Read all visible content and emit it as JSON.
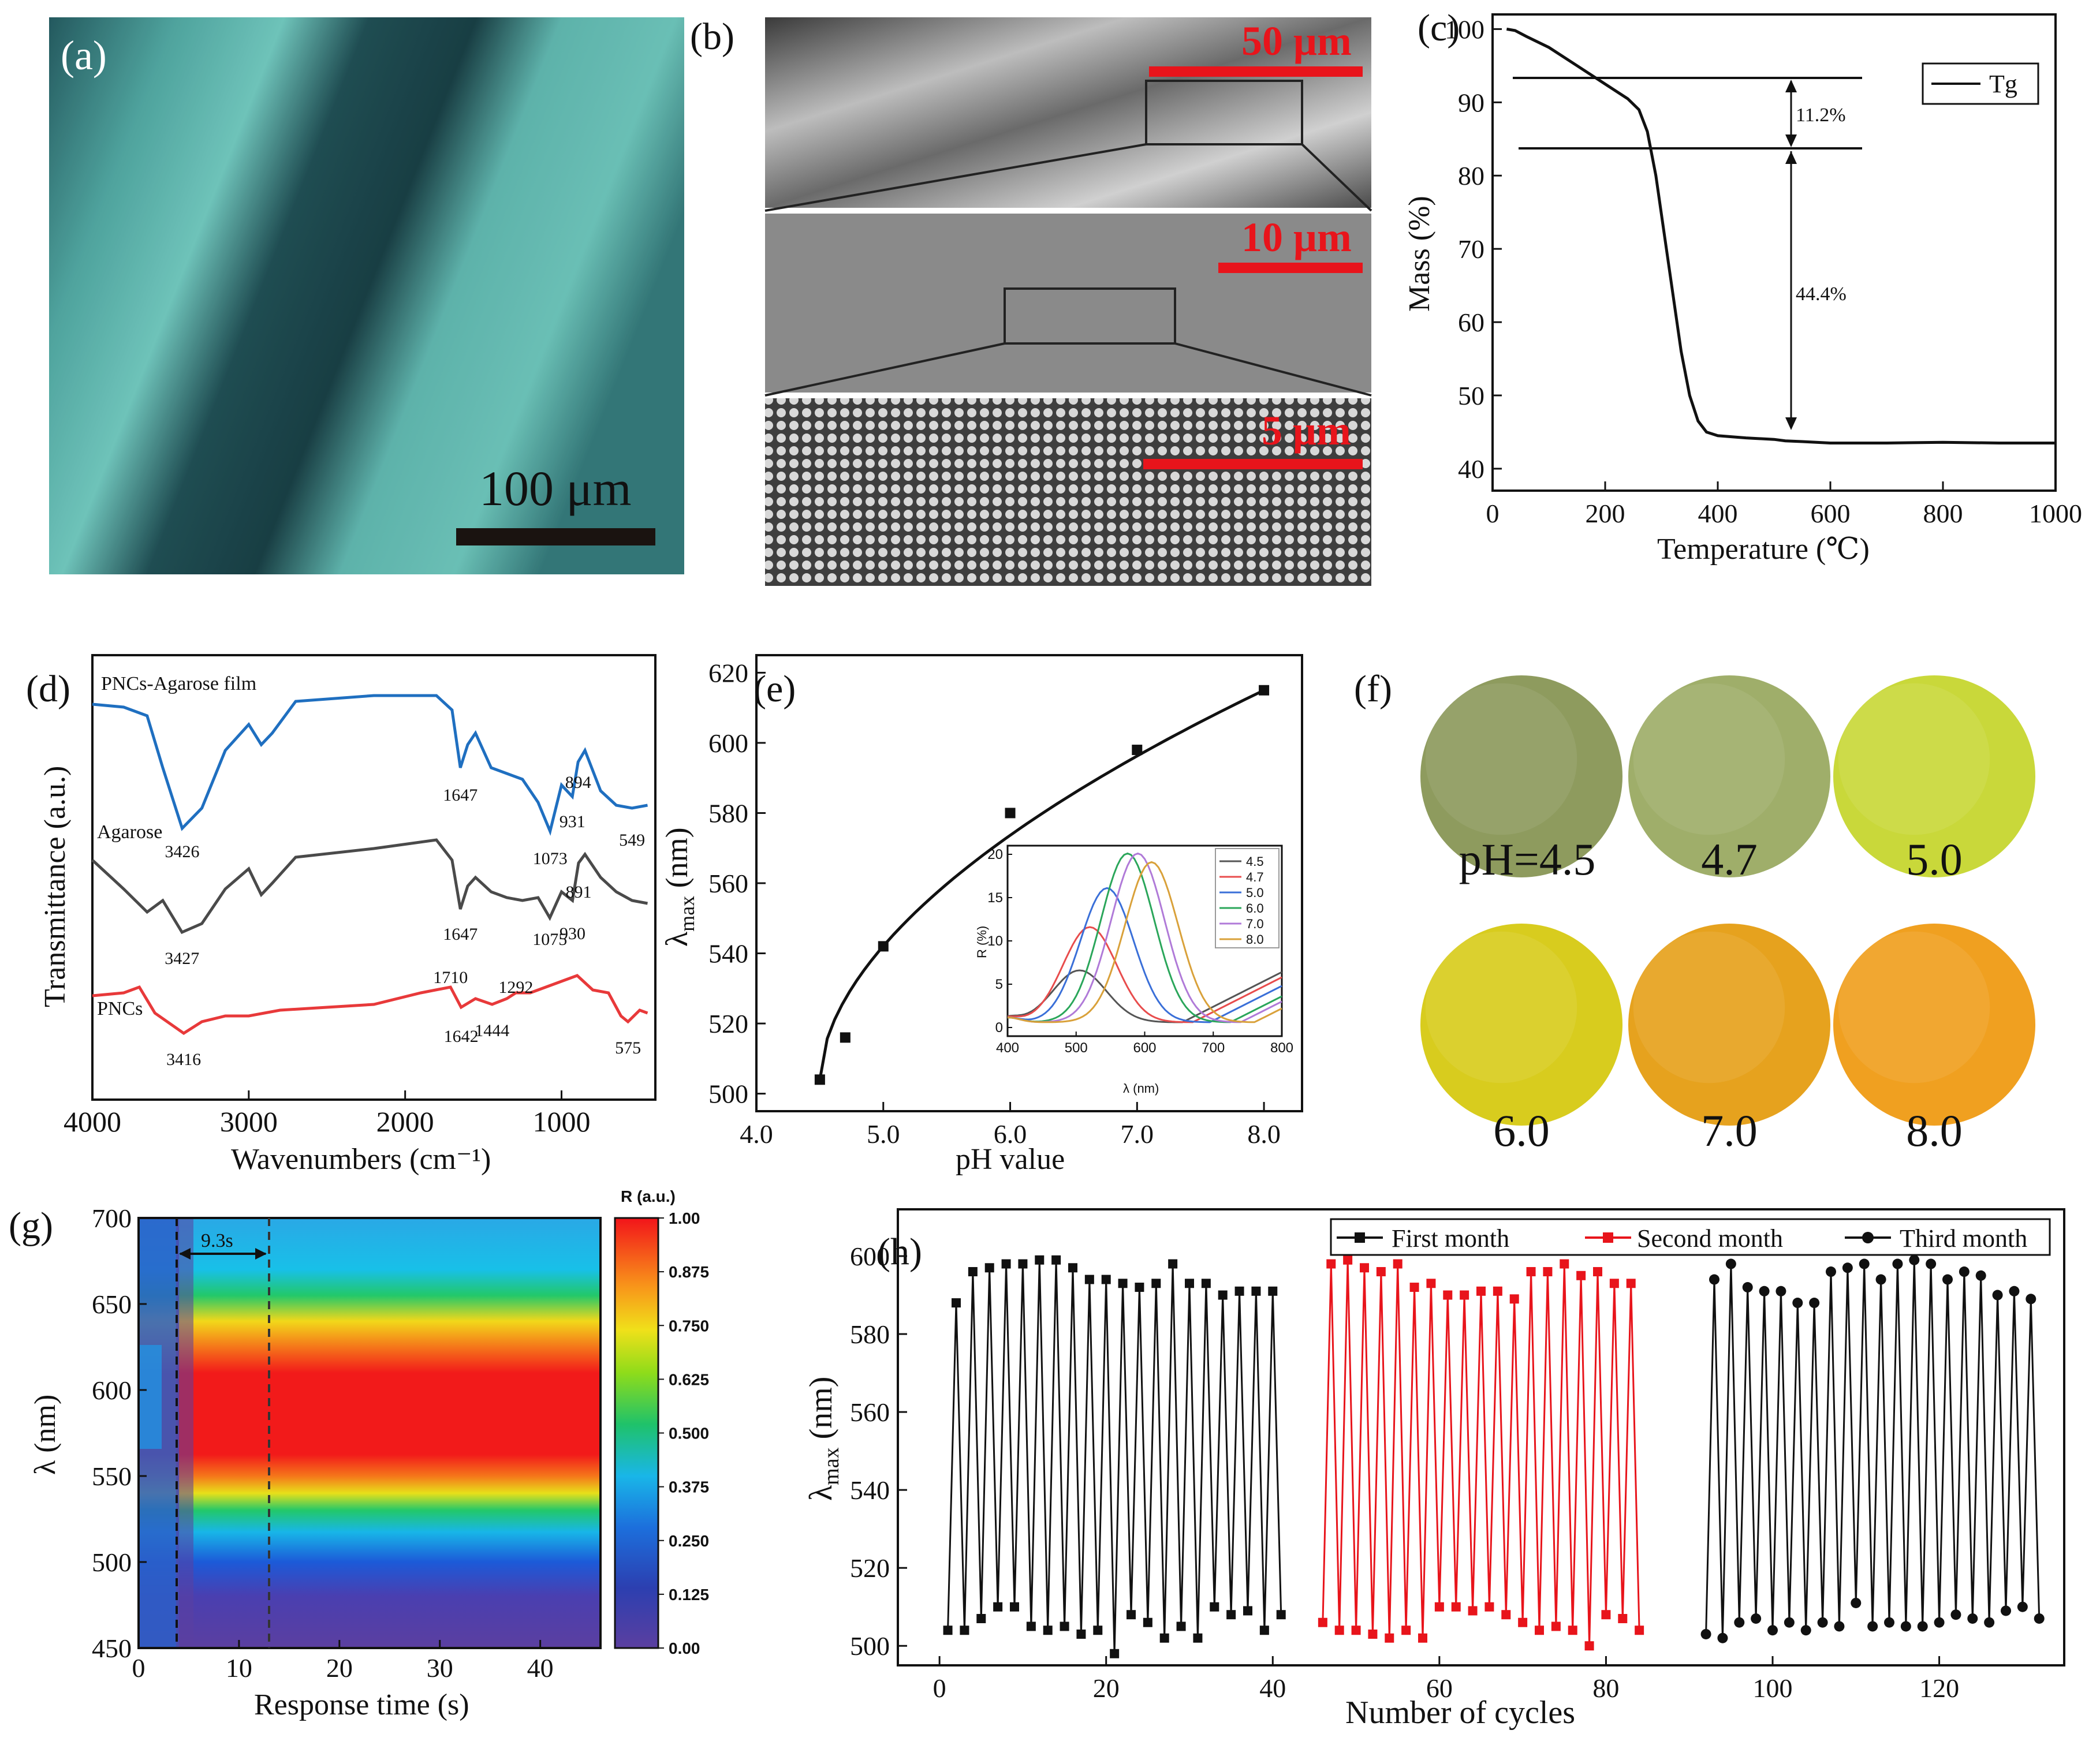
{
  "panel_labels": {
    "a": "(a)",
    "b": "(b)",
    "c": "(c)",
    "d": "(d)",
    "e": "(e)",
    "f": "(f)",
    "g": "(g)",
    "h": "(h)"
  },
  "micrograph": {
    "scale_label": "100 μm",
    "sem_scale_1": "50 μm",
    "sem_scale_2": "10 μm",
    "sem_scale_3": "5 μm",
    "colors": {
      "dark": "#0f2e34",
      "light": "#5fb8b0",
      "bar": "#1a1310",
      "sem_bar": "#e8141b"
    }
  },
  "chart_data": [
    {
      "panel": "c",
      "type": "line",
      "title": "",
      "xlabel": "Temperature (℃)",
      "ylabel": "Mass (%)",
      "xlim": [
        0,
        1000
      ],
      "ylim": [
        37,
        102
      ],
      "xticks": [
        "0",
        "200",
        "400",
        "600",
        "800",
        "1000"
      ],
      "yticks": [
        "40",
        "50",
        "60",
        "70",
        "80",
        "90",
        "100"
      ],
      "legend": [
        "Tg"
      ],
      "annotations": [
        "11.2%",
        "44.4%"
      ],
      "series": [
        {
          "name": "Tg",
          "x": [
            25,
            40,
            60,
            100,
            150,
            200,
            240,
            260,
            275,
            290,
            305,
            320,
            335,
            350,
            365,
            380,
            400,
            450,
            500,
            520,
            550,
            600,
            700,
            800,
            900,
            1000
          ],
          "y": [
            100,
            99.8,
            99,
            97.5,
            95,
            92.5,
            90.5,
            89,
            86,
            80,
            72,
            64,
            56,
            50,
            46.5,
            45,
            44.5,
            44.2,
            44,
            43.8,
            43.7,
            43.5,
            43.5,
            43.6,
            43.5,
            43.5
          ]
        }
      ]
    },
    {
      "panel": "d",
      "type": "line",
      "xlabel": "Wavenumbers (cm⁻¹)",
      "ylabel": "Transmittance (a.u.)",
      "xlim": [
        4000,
        400
      ],
      "xticks": [
        "4000",
        "3000",
        "2000",
        "1000"
      ],
      "series": [
        {
          "name": "PNCs-Agarose film",
          "label": "PNCs-Agarose film",
          "color": "#1f6fc0",
          "peaks": [
            "3426",
            "1647",
            "1073",
            "931",
            "894",
            "549"
          ]
        },
        {
          "name": "Agarose",
          "label": "Agarose",
          "color": "#4a4a4a",
          "peaks": [
            "3427",
            "1647",
            "1075",
            "930",
            "891"
          ]
        },
        {
          "name": "PNCs",
          "label": "PNCs",
          "color": "#e8393a",
          "peaks": [
            "3416",
            "1710",
            "1642",
            "1444",
            "1292",
            "575"
          ]
        }
      ]
    },
    {
      "panel": "e",
      "type": "line",
      "xlabel": "pH value",
      "ylabel": "λmax (nm)",
      "xlim": [
        4.0,
        8.3
      ],
      "ylim": [
        495,
        625
      ],
      "xticks": [
        "4.0",
        "5.0",
        "6.0",
        "7.0",
        "8.0"
      ],
      "yticks": [
        "500",
        "520",
        "540",
        "560",
        "580",
        "600",
        "620"
      ],
      "x": [
        4.5,
        4.7,
        5.0,
        6.0,
        7.0,
        8.0
      ],
      "y": [
        504,
        516,
        542,
        580,
        598,
        615
      ],
      "inset": {
        "type": "line",
        "xlabel": "λ (nm)",
        "ylabel": "R (%)",
        "xlim": [
          400,
          800
        ],
        "ylim": [
          -1,
          21
        ],
        "xticks": [
          "400",
          "500",
          "600",
          "700",
          "800"
        ],
        "yticks": [
          "0",
          "5",
          "10",
          "15",
          "20"
        ],
        "series": [
          {
            "name": "4.5",
            "peak_x": 505,
            "peak_y": 6,
            "color": "#555555"
          },
          {
            "name": "4.7",
            "peak_x": 520,
            "peak_y": 11,
            "color": "#e84c4c"
          },
          {
            "name": "5.0",
            "peak_x": 545,
            "peak_y": 15.5,
            "color": "#3a6fd8"
          },
          {
            "name": "6.0",
            "peak_x": 575,
            "peak_y": 19.5,
            "color": "#2aa65a"
          },
          {
            "name": "7.0",
            "peak_x": 590,
            "peak_y": 19.5,
            "color": "#b07ad8"
          },
          {
            "name": "8.0",
            "peak_x": 610,
            "peak_y": 18.5,
            "color": "#d9a13a"
          }
        ]
      }
    },
    {
      "panel": "g",
      "type": "heatmap",
      "xlabel": "Response time (s)",
      "ylabel": "λ (nm)",
      "xlim": [
        0,
        46
      ],
      "ylim": [
        450,
        700
      ],
      "xticks": [
        "0",
        "10",
        "20",
        "30",
        "40"
      ],
      "yticks": [
        "450",
        "500",
        "550",
        "600",
        "650",
        "700"
      ],
      "annotation": "9.3s",
      "colorbar_label": "R (a.u.)",
      "colorbar_ticks": [
        "1.00",
        "0.875",
        "0.750",
        "0.625",
        "0.500",
        "0.375",
        "0.250",
        "0.125",
        "0.00"
      ]
    },
    {
      "panel": "h",
      "type": "line",
      "xlabel": "Number of cycles",
      "ylabel": "λmax (nm)",
      "xlim": [
        -5,
        135
      ],
      "ylim": [
        495,
        612
      ],
      "xticks": [
        "0",
        "20",
        "40",
        "60",
        "80",
        "100",
        "120"
      ],
      "yticks": [
        "500",
        "520",
        "540",
        "560",
        "580",
        "600"
      ],
      "series": [
        {
          "name": "First month",
          "color": "#111111",
          "marker": "square",
          "x_start": 1,
          "y": [
            504,
            588,
            504,
            596,
            507,
            597,
            510,
            598,
            510,
            598,
            505,
            599,
            504,
            599,
            505,
            597,
            503,
            594,
            504,
            594,
            498,
            593,
            508,
            592,
            506,
            593,
            502,
            598,
            505,
            593,
            502,
            593,
            510,
            590,
            508,
            591,
            509,
            591,
            504,
            591,
            508
          ]
        },
        {
          "name": "Second month",
          "color": "#e8141b",
          "marker": "square",
          "x_start": 46,
          "y": [
            506,
            598,
            504,
            599,
            504,
            597,
            503,
            596,
            502,
            598,
            504,
            592,
            502,
            593,
            510,
            590,
            510,
            590,
            509,
            591,
            510,
            591,
            508,
            589,
            506,
            596,
            504,
            596,
            505,
            598,
            504,
            595,
            500,
            596,
            508,
            593,
            507,
            593,
            504
          ]
        },
        {
          "name": "Third month",
          "color": "#111111",
          "marker": "circle",
          "x_start": 92,
          "y": [
            503,
            594,
            502,
            598,
            506,
            592,
            507,
            591,
            504,
            591,
            506,
            588,
            504,
            588,
            506,
            596,
            505,
            597,
            511,
            598,
            505,
            594,
            506,
            598,
            505,
            599,
            505,
            598,
            506,
            594,
            508,
            596,
            507,
            595,
            506,
            590,
            509,
            591,
            510,
            589,
            507
          ]
        }
      ]
    }
  ],
  "photos": {
    "labels": [
      "pH=4.5",
      "4.7",
      "5.0",
      "6.0",
      "7.0",
      "8.0"
    ],
    "colors": [
      "#8e9b5e",
      "#9fae6a",
      "#c9d83a",
      "#d8cc1e",
      "#e6a21e",
      "#f0a020"
    ]
  }
}
